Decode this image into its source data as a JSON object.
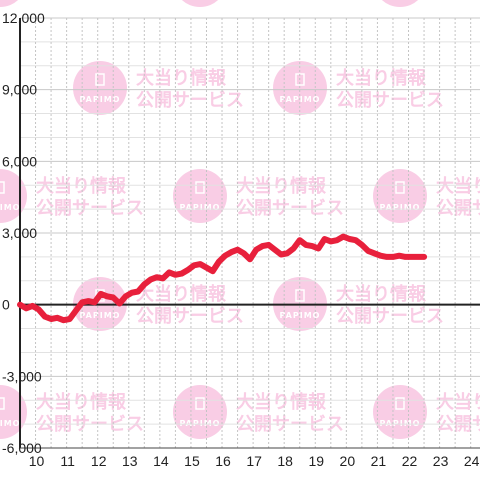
{
  "watermark": {
    "line1": "大当り情報",
    "line2": "公開サービス",
    "logo": "PAPIMO",
    "color": "#f9cde5"
  },
  "chart_data": {
    "type": "line",
    "title": "",
    "xlabel": "",
    "ylabel": "",
    "xlim": [
      9.5,
      24.3
    ],
    "ylim": [
      -6000,
      12000
    ],
    "x_ticks": [
      10,
      11,
      12,
      13,
      14,
      15,
      16,
      17,
      18,
      19,
      20,
      21,
      22,
      23,
      24
    ],
    "y_ticks": [
      -6000,
      -3000,
      0,
      3000,
      6000,
      9000,
      12000
    ],
    "y_tick_labels": [
      "-6,000",
      "-3,000",
      "0",
      "3,000",
      "6,000",
      "9,000",
      "12,000"
    ],
    "grid": true,
    "line_color": "#e8203c",
    "series": [
      {
        "x": [
          9.5,
          9.7,
          9.9,
          10.1,
          10.3,
          10.5,
          10.7,
          10.9,
          11.1,
          11.3,
          11.5,
          11.7,
          11.9,
          12.1,
          12.3,
          12.5,
          12.7,
          12.9,
          13.1,
          13.3,
          13.5,
          13.7,
          13.9,
          14.1,
          14.3,
          14.5,
          14.7,
          14.9,
          15.1,
          15.3,
          15.5,
          15.7,
          15.9,
          16.1,
          16.3,
          16.5,
          16.7,
          16.9,
          17.1,
          17.3,
          17.5,
          17.7,
          17.9,
          18.1,
          18.3,
          18.5,
          18.7,
          18.9,
          19.1,
          19.3,
          19.5,
          19.7,
          19.9,
          20.1,
          20.3,
          20.5,
          20.7,
          20.9,
          21.1,
          21.3,
          21.5,
          21.7,
          21.9,
          22.1,
          22.3,
          22.5
        ],
        "y": [
          0,
          -150,
          -50,
          -200,
          -500,
          -600,
          -550,
          -650,
          -600,
          -250,
          100,
          150,
          100,
          450,
          350,
          300,
          50,
          350,
          500,
          550,
          850,
          1050,
          1150,
          1100,
          1350,
          1250,
          1300,
          1450,
          1650,
          1700,
          1550,
          1400,
          1800,
          2050,
          2200,
          2300,
          2150,
          1900,
          2300,
          2450,
          2500,
          2300,
          2100,
          2150,
          2350,
          2700,
          2500,
          2450,
          2350,
          2750,
          2650,
          2700,
          2850,
          2750,
          2700,
          2500,
          2250,
          2150,
          2050,
          2000,
          2000,
          2050,
          2000,
          2000,
          2000,
          2000
        ]
      }
    ]
  }
}
